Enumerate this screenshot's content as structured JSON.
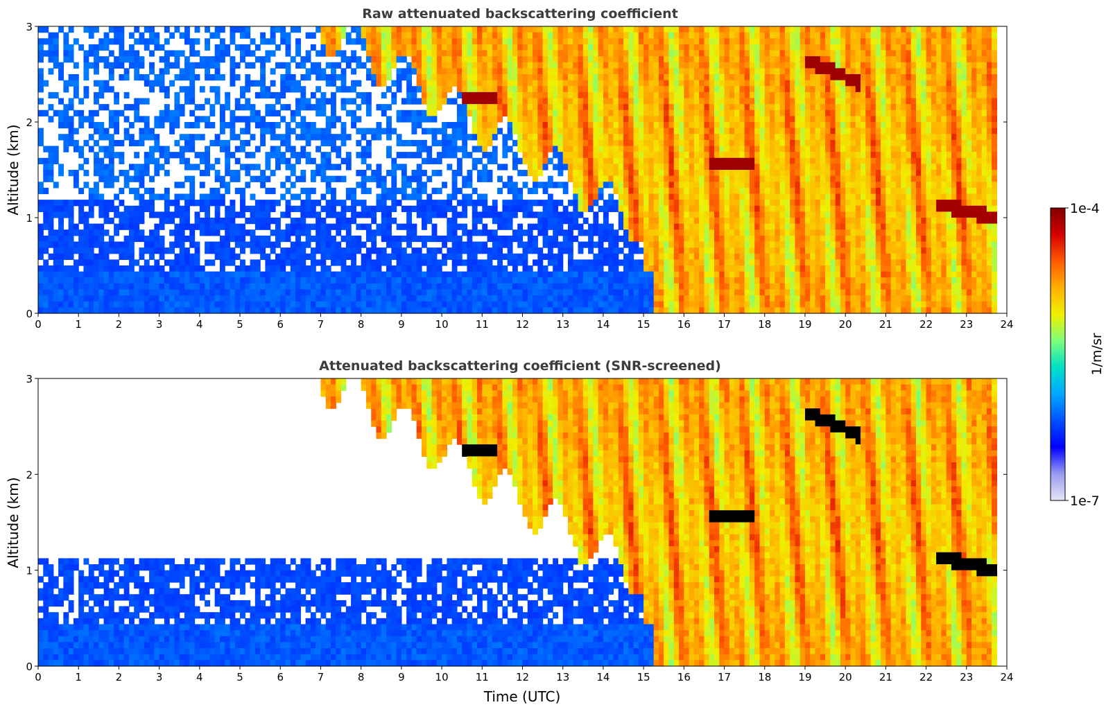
{
  "colorbar": {
    "label": "1/m/sr",
    "min_label": "1e-7",
    "max_label": "1e-4",
    "scale": "log",
    "colormap": "jet",
    "colors": [
      "#e6e6f5",
      "#9a9af2",
      "#0000ff",
      "#0050ff",
      "#00a8ff",
      "#00e0c8",
      "#7cff7a",
      "#f0f000",
      "#ffb000",
      "#ff5a00",
      "#d40000",
      "#800000"
    ]
  },
  "chart_data": [
    {
      "type": "heatmap",
      "title": "Raw attenuated backscattering coefficient",
      "xlabel": "",
      "ylabel": "Altitude (km)",
      "xlim": [
        0,
        24
      ],
      "ylim": [
        0,
        3
      ],
      "xticks": [
        "0",
        "1",
        "2",
        "3",
        "4",
        "5",
        "6",
        "7",
        "8",
        "9",
        "10",
        "11",
        "12",
        "13",
        "14",
        "15",
        "16",
        "17",
        "18",
        "19",
        "20",
        "21",
        "22",
        "23",
        "24"
      ],
      "yticks": [
        "0",
        "1",
        "2",
        "3"
      ],
      "grid": false,
      "features": {
        "noise_background": "blue/white speckle above ~0.5 km before 15 UTC",
        "dense_aerosol_layer_km": [
          0,
          0.4
        ],
        "high_backscatter_start_utc": 15.2
      }
    },
    {
      "type": "heatmap",
      "title": "Attenuated backscattering coefficient (SNR-screened)",
      "xlabel": "Time (UTC)",
      "ylabel": "Altitude (km)",
      "xlim": [
        0,
        24
      ],
      "ylim": [
        0,
        3
      ],
      "xticks": [
        "0",
        "1",
        "2",
        "3",
        "4",
        "5",
        "6",
        "7",
        "8",
        "9",
        "10",
        "11",
        "12",
        "13",
        "14",
        "15",
        "16",
        "17",
        "18",
        "19",
        "20",
        "21",
        "22",
        "23",
        "24"
      ],
      "yticks": [
        "0",
        "1",
        "2",
        "3"
      ],
      "grid": false,
      "features": {
        "screened_out": "white where SNR low",
        "saturated_color": "#000000"
      }
    }
  ]
}
